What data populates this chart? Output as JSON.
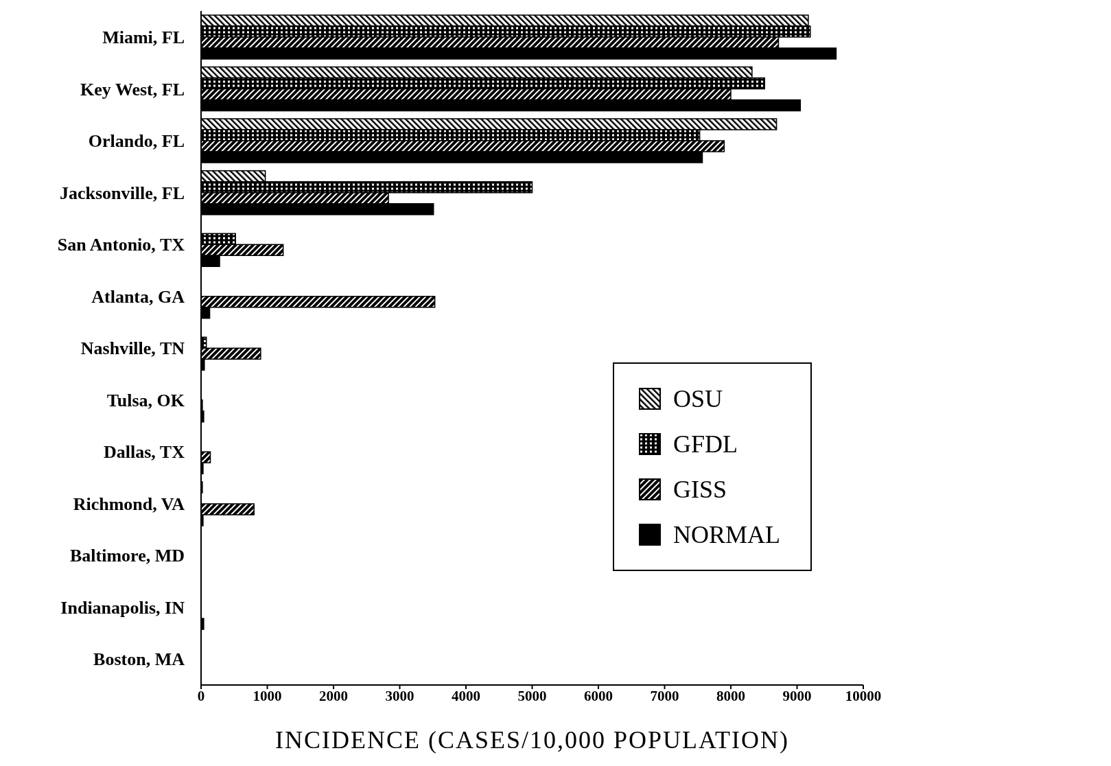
{
  "chart_data": {
    "type": "bar",
    "orientation": "horizontal",
    "xlabel": "INCIDENCE (CASES/10,000 POPULATION)",
    "categories": [
      "Miami, FL",
      "Key West, FL",
      "Orlando, FL",
      "Jacksonville, FL",
      "San Antonio, TX",
      "Atlanta, GA",
      "Nashville, TN",
      "Tulsa, OK",
      "Dallas, TX",
      "Richmond, VA",
      "Baltimore, MD",
      "Indianapolis, IN",
      "Boston, MA"
    ],
    "series": [
      {
        "name": "OSU",
        "color": "#000000",
        "values": [
          9170,
          8320,
          8690,
          970,
          0,
          0,
          0,
          null,
          null,
          20,
          0,
          0,
          0
        ]
      },
      {
        "name": "GFDL",
        "color": "#000000",
        "values": [
          9200,
          8510,
          7530,
          5000,
          520,
          0,
          80,
          null,
          null,
          null,
          0,
          0,
          0
        ]
      },
      {
        "name": "GISS",
        "color": "#000000",
        "values": [
          8720,
          8000,
          7900,
          2830,
          1240,
          3530,
          900,
          20,
          140,
          800,
          0,
          0,
          0
        ]
      },
      {
        "name": "NORMAL",
        "color": "#000000",
        "values": [
          9590,
          9050,
          7570,
          3510,
          280,
          130,
          50,
          40,
          30,
          30,
          0,
          40,
          0
        ]
      }
    ],
    "xlim": [
      0,
      10000
    ],
    "xticks": [
      0,
      1000,
      2000,
      3000,
      4000,
      5000,
      6000,
      7000,
      8000,
      9000,
      10000
    ],
    "legend": "right"
  }
}
